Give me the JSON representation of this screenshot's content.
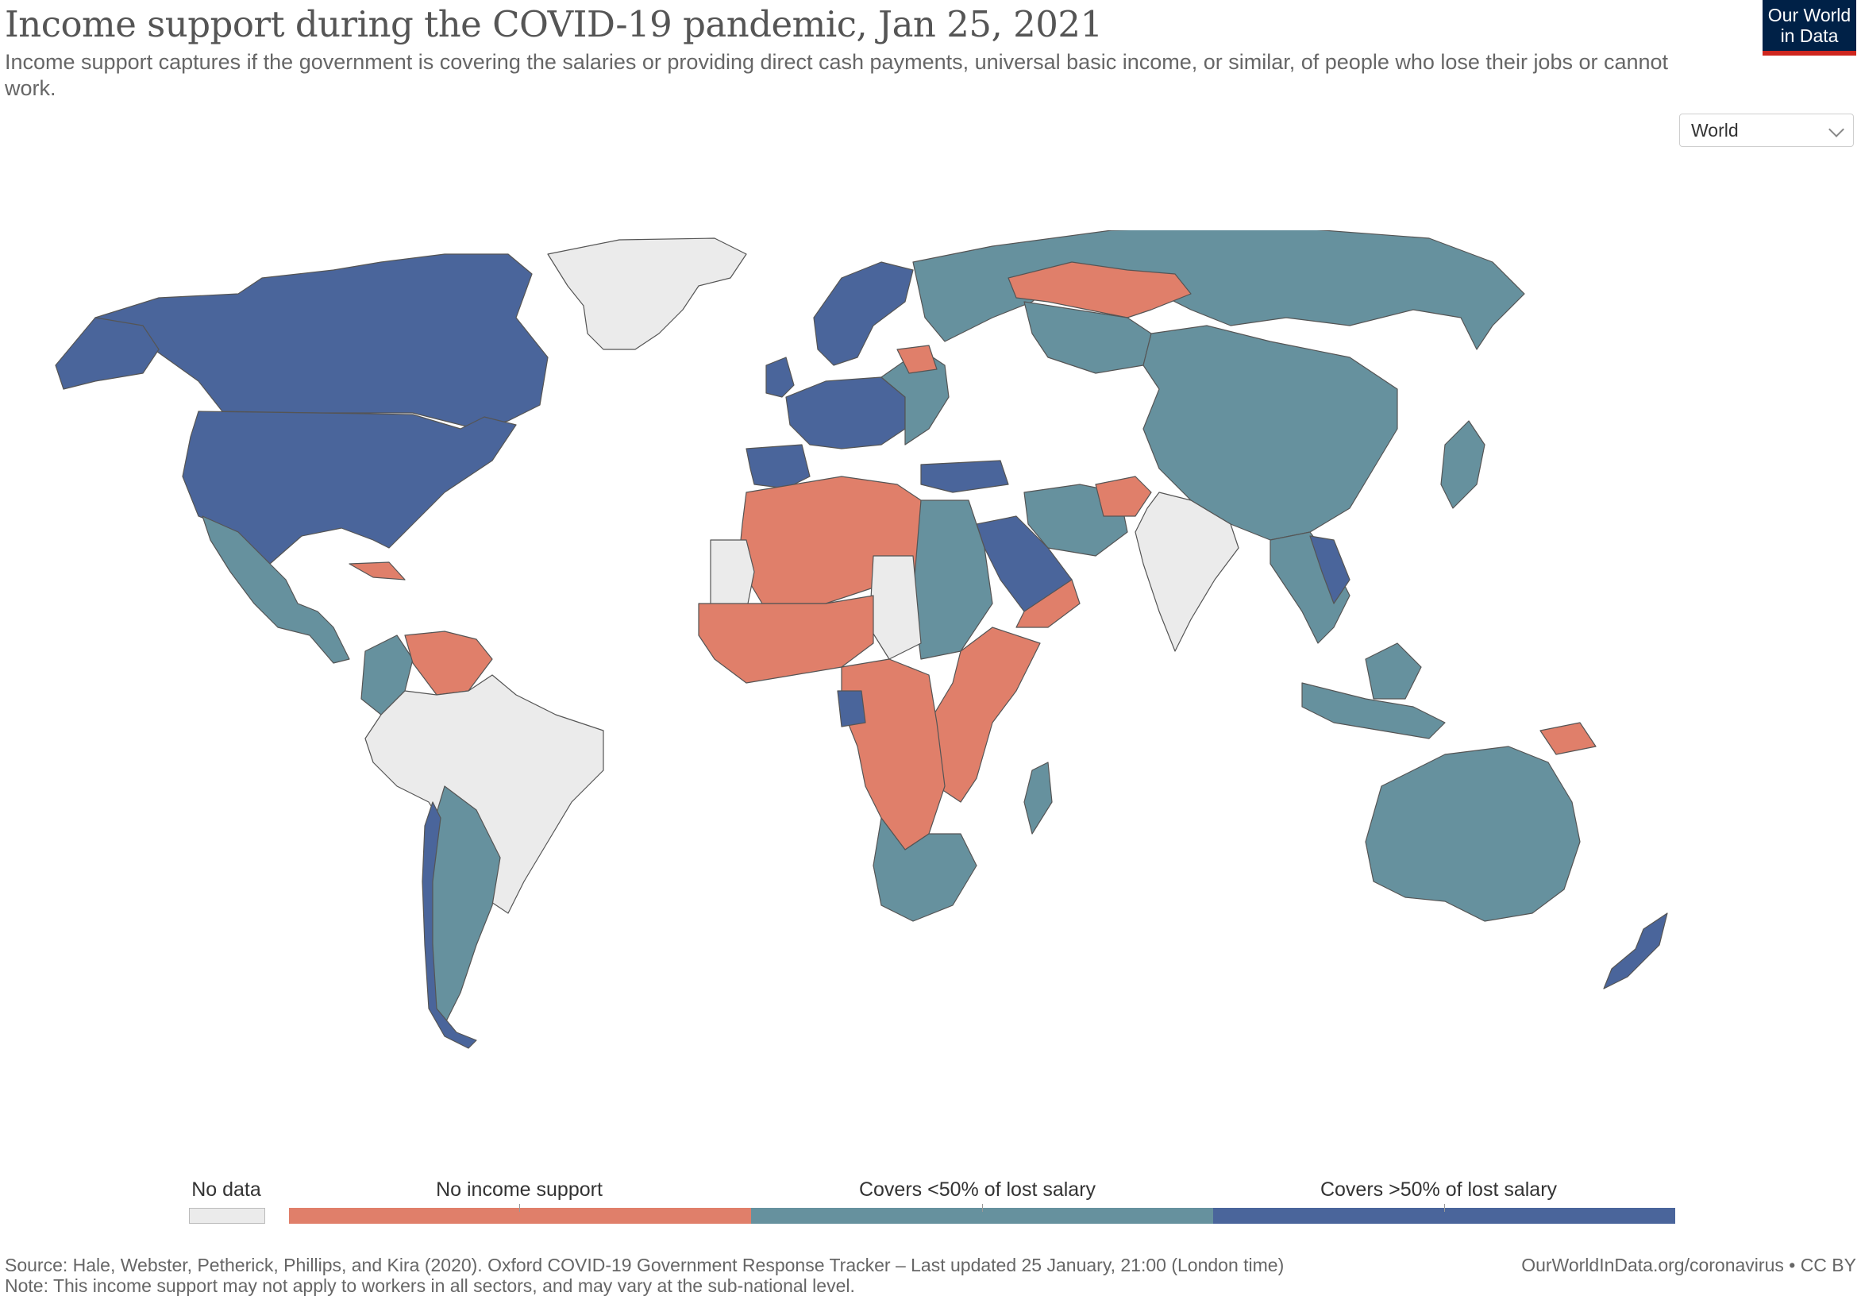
{
  "header": {
    "title": "Income support during the COVID-19 pandemic, Jan 25, 2021",
    "subtitle": "Income support captures if the government is covering the salaries or providing direct cash payments, universal basic income, or similar, of people who lose their jobs or cannot work."
  },
  "logo": {
    "line1": "Our World",
    "line2": "in Data"
  },
  "region_select": {
    "value": "World"
  },
  "legend": {
    "no_data": "No data",
    "categories": [
      "No income support",
      "Covers <50% of lost salary",
      "Covers >50% of lost salary"
    ]
  },
  "colors": {
    "no_data": "#ebebeb",
    "none": "#e07f6a",
    "lt50": "#66919e",
    "gt50": "#4a659b",
    "border": "#555555"
  },
  "footer": {
    "source": "Source: Hale, Webster, Petherick, Phillips, and Kira (2020). Oxford COVID-19 Government Response Tracker – Last updated 25 January, 21:00 (London time)",
    "note": "Note: This income support may not apply to workers in all sectors, and may vary at the sub-national level.",
    "credit": "OurWorldInData.org/coronavirus • CC BY"
  }
}
